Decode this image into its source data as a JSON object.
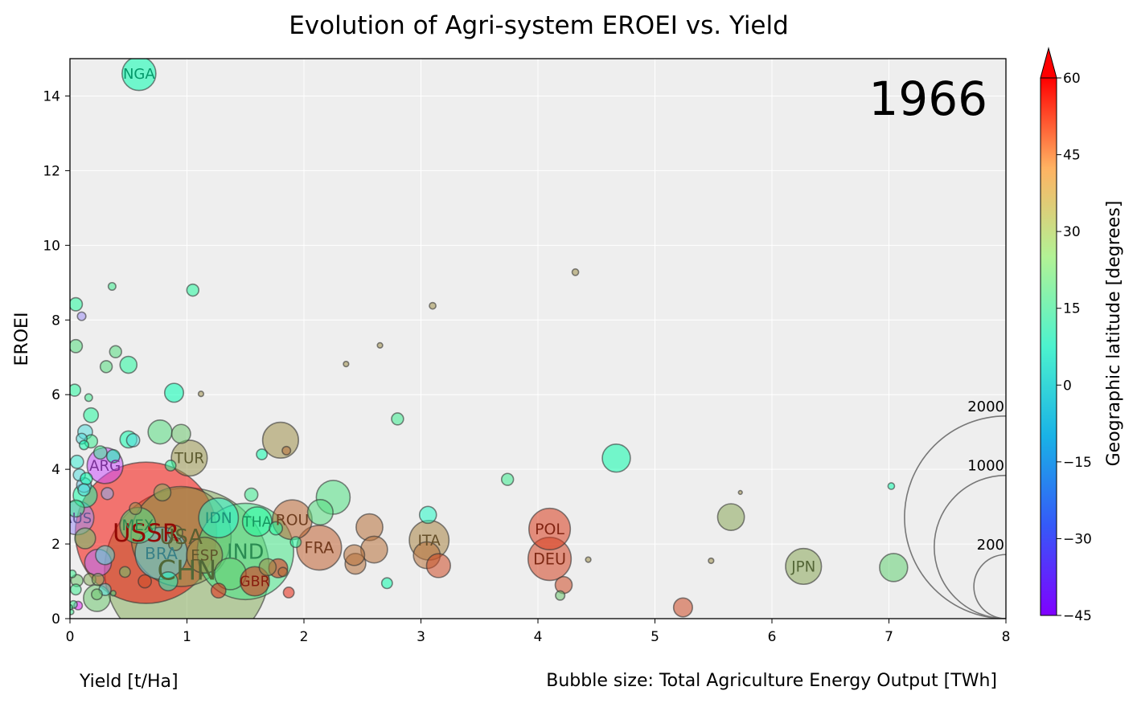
{
  "chart_data": {
    "type": "scatter",
    "title": "Evolution of Agri-system EROEI vs. Yield",
    "year": "1966",
    "xlabel": "Yield [t/Ha]",
    "ylabel": "EROEI",
    "size_caption": "Bubble size: Total Agriculture Energy Output [TWh]",
    "xlim": [
      0,
      8
    ],
    "ylim": [
      0,
      15
    ],
    "x_ticks": [
      0,
      1,
      2,
      3,
      4,
      5,
      6,
      7,
      8
    ],
    "y_ticks": [
      0,
      2,
      4,
      6,
      8,
      10,
      12,
      14
    ],
    "grid": true,
    "colorbar": {
      "label": "Geographic latitude [degrees]",
      "min": -45,
      "max": 60,
      "ticks": [
        60,
        45,
        30,
        15,
        0,
        -15,
        -30,
        -45
      ],
      "extend": "max"
    },
    "size_legend": [
      {
        "label": "2000",
        "value": 2000
      },
      {
        "label": "1000",
        "value": 1000
      },
      {
        "label": "200",
        "value": 200
      }
    ],
    "points": [
      {
        "label": "CHN",
        "x": 1.0,
        "y": 1.3,
        "size": 1900,
        "lat": 35
      },
      {
        "label": "USSR",
        "x": 0.65,
        "y": 2.3,
        "size": 1400,
        "lat": 58
      },
      {
        "label": "IND",
        "x": 1.5,
        "y": 1.8,
        "size": 650,
        "lat": 22
      },
      {
        "label": "USA",
        "x": 0.95,
        "y": 2.2,
        "size": 700,
        "lat": 38
      },
      {
        "label": "BRA",
        "x": 0.78,
        "y": 1.75,
        "size": 190,
        "lat": -12
      },
      {
        "label": "IDN",
        "x": 1.27,
        "y": 2.7,
        "size": 110,
        "lat": -2
      },
      {
        "label": "THA",
        "x": 1.6,
        "y": 2.6,
        "size": 60,
        "lat": 15
      },
      {
        "label": "ROU",
        "x": 1.9,
        "y": 2.65,
        "size": 110,
        "lat": 46
      },
      {
        "label": "FRA",
        "x": 2.13,
        "y": 1.9,
        "size": 140,
        "lat": 47
      },
      {
        "label": "ITA",
        "x": 3.07,
        "y": 2.1,
        "size": 110,
        "lat": 42
      },
      {
        "label": "POL",
        "x": 4.1,
        "y": 2.4,
        "size": 120,
        "lat": 52
      },
      {
        "label": "DEU",
        "x": 4.1,
        "y": 1.6,
        "size": 130,
        "lat": 51
      },
      {
        "label": "JPN",
        "x": 6.27,
        "y": 1.4,
        "size": 90,
        "lat": 36
      },
      {
        "label": "TUR",
        "x": 1.02,
        "y": 4.3,
        "size": 90,
        "lat": 39
      },
      {
        "label": "ARG",
        "x": 0.3,
        "y": 4.1,
        "size": 90,
        "lat": -34
      },
      {
        "label": "AUS",
        "x": 0.06,
        "y": 2.7,
        "size": 80,
        "lat": -25
      },
      {
        "label": "MEX",
        "x": 0.58,
        "y": 2.5,
        "size": 90,
        "lat": 23
      },
      {
        "label": "ESP",
        "x": 1.15,
        "y": 1.7,
        "size": 90,
        "lat": 40
      },
      {
        "label": "GBR",
        "x": 1.58,
        "y": 1.0,
        "size": 60,
        "lat": 54
      },
      {
        "label": "NGA",
        "x": 0.59,
        "y": 14.6,
        "size": 80,
        "lat": 9
      },
      {
        "label": "",
        "x": 1.8,
        "y": 4.78,
        "size": 90,
        "lat": 40
      },
      {
        "label": "",
        "x": 4.67,
        "y": 4.3,
        "size": 55,
        "lat": 10
      },
      {
        "label": "",
        "x": 5.65,
        "y": 2.72,
        "size": 50,
        "lat": 36
      },
      {
        "label": "",
        "x": 7.04,
        "y": 1.37,
        "size": 55,
        "lat": 28
      },
      {
        "label": "",
        "x": 2.25,
        "y": 3.25,
        "size": 80,
        "lat": 24
      },
      {
        "label": "",
        "x": 2.56,
        "y": 2.45,
        "size": 50,
        "lat": 45
      },
      {
        "label": "",
        "x": 2.6,
        "y": 1.85,
        "size": 50,
        "lat": 45
      },
      {
        "label": "",
        "x": 3.15,
        "y": 1.42,
        "size": 40,
        "lat": 50
      },
      {
        "label": "",
        "x": 3.05,
        "y": 1.7,
        "size": 50,
        "lat": 45
      },
      {
        "label": "",
        "x": 2.14,
        "y": 2.85,
        "size": 45,
        "lat": 25
      },
      {
        "label": "",
        "x": 1.37,
        "y": 1.2,
        "size": 70,
        "lat": 28
      },
      {
        "label": "",
        "x": 0.77,
        "y": 5.0,
        "size": 40,
        "lat": 25
      },
      {
        "label": "",
        "x": 0.89,
        "y": 6.05,
        "size": 25,
        "lat": 8
      },
      {
        "label": "",
        "x": 0.95,
        "y": 4.95,
        "size": 25,
        "lat": 30
      },
      {
        "label": "",
        "x": 0.5,
        "y": 6.8,
        "size": 20,
        "lat": 15
      },
      {
        "label": "",
        "x": 0.13,
        "y": 3.3,
        "size": 40,
        "lat": 12
      },
      {
        "label": "",
        "x": 0.24,
        "y": 1.5,
        "size": 50,
        "lat": -30
      },
      {
        "label": "",
        "x": 0.3,
        "y": 1.7,
        "size": 25,
        "lat": -10
      },
      {
        "label": "",
        "x": 0.23,
        "y": 0.55,
        "size": 50,
        "lat": 30
      },
      {
        "label": "",
        "x": 0.13,
        "y": 2.15,
        "size": 30,
        "lat": 30
      },
      {
        "label": "",
        "x": 0.84,
        "y": 1.0,
        "size": 25,
        "lat": 0
      },
      {
        "label": "",
        "x": 0.79,
        "y": 3.38,
        "size": 20,
        "lat": 35
      },
      {
        "label": "",
        "x": 2.44,
        "y": 1.47,
        "size": 30,
        "lat": 45
      },
      {
        "label": "",
        "x": 2.43,
        "y": 1.7,
        "size": 30,
        "lat": 45
      },
      {
        "label": "",
        "x": 4.22,
        "y": 0.9,
        "size": 20,
        "lat": 50
      },
      {
        "label": "",
        "x": 5.24,
        "y": 0.3,
        "size": 25,
        "lat": 50
      },
      {
        "label": "",
        "x": 1.78,
        "y": 1.35,
        "size": 25,
        "lat": 55
      },
      {
        "label": "",
        "x": 1.69,
        "y": 1.38,
        "size": 20,
        "lat": 40
      },
      {
        "label": "",
        "x": 1.27,
        "y": 0.75,
        "size": 15,
        "lat": 55
      },
      {
        "label": "",
        "x": 3.06,
        "y": 2.78,
        "size": 20,
        "lat": 0
      },
      {
        "label": "",
        "x": 0.13,
        "y": 5.0,
        "size": 15,
        "lat": -10
      },
      {
        "label": "",
        "x": 0.18,
        "y": 5.45,
        "size": 15,
        "lat": 15
      },
      {
        "label": "",
        "x": 0.5,
        "y": 4.8,
        "size": 20,
        "lat": 10
      },
      {
        "label": "",
        "x": 0.54,
        "y": 4.78,
        "size": 12,
        "lat": -10
      },
      {
        "label": "",
        "x": 0.06,
        "y": 4.2,
        "size": 12,
        "lat": -5
      },
      {
        "label": "",
        "x": 0.26,
        "y": 4.45,
        "size": 12,
        "lat": 20
      },
      {
        "label": "",
        "x": 0.37,
        "y": 4.35,
        "size": 12,
        "lat": 10
      },
      {
        "label": "",
        "x": 0.08,
        "y": 3.85,
        "size": 10,
        "lat": -10
      },
      {
        "label": "",
        "x": 0.12,
        "y": 3.58,
        "size": 15,
        "lat": -15
      },
      {
        "label": "",
        "x": 0.14,
        "y": 3.75,
        "size": 10,
        "lat": 10
      },
      {
        "label": "",
        "x": 0.05,
        "y": 2.95,
        "size": 20,
        "lat": 20
      },
      {
        "label": "",
        "x": 0.32,
        "y": 3.35,
        "size": 10,
        "lat": -20
      },
      {
        "label": "",
        "x": 0.12,
        "y": 3.45,
        "size": 10,
        "lat": -10
      },
      {
        "label": "",
        "x": 0.05,
        "y": 8.42,
        "size": 12,
        "lat": 15
      },
      {
        "label": "",
        "x": 0.05,
        "y": 7.3,
        "size": 12,
        "lat": 25
      },
      {
        "label": "",
        "x": 0.04,
        "y": 6.12,
        "size": 10,
        "lat": 15
      },
      {
        "label": "",
        "x": 0.31,
        "y": 6.75,
        "size": 10,
        "lat": 25
      },
      {
        "label": "",
        "x": 0.39,
        "y": 7.15,
        "size": 10,
        "lat": 25
      },
      {
        "label": "",
        "x": 1.05,
        "y": 8.8,
        "size": 10,
        "lat": 15
      },
      {
        "label": "",
        "x": 0.1,
        "y": 8.1,
        "size": 5,
        "lat": -25
      },
      {
        "label": "",
        "x": 0.36,
        "y": 8.9,
        "size": 4,
        "lat": 20
      },
      {
        "label": "",
        "x": 0.16,
        "y": 5.92,
        "size": 4,
        "lat": 20
      },
      {
        "label": "",
        "x": 0.1,
        "y": 4.82,
        "size": 8,
        "lat": -10
      },
      {
        "label": "",
        "x": 0.12,
        "y": 4.65,
        "size": 6,
        "lat": 10
      },
      {
        "label": "",
        "x": 0.18,
        "y": 4.75,
        "size": 12,
        "lat": 20
      },
      {
        "label": "",
        "x": 0.86,
        "y": 4.1,
        "size": 8,
        "lat": 15
      },
      {
        "label": "",
        "x": 1.64,
        "y": 4.4,
        "size": 8,
        "lat": 10
      },
      {
        "label": "",
        "x": 1.55,
        "y": 3.32,
        "size": 12,
        "lat": 20
      },
      {
        "label": "",
        "x": 1.76,
        "y": 2.42,
        "size": 12,
        "lat": 15
      },
      {
        "label": "",
        "x": 1.85,
        "y": 4.5,
        "size": 5,
        "lat": 45
      },
      {
        "label": "",
        "x": 2.8,
        "y": 5.35,
        "size": 10,
        "lat": 20
      },
      {
        "label": "",
        "x": 3.74,
        "y": 3.73,
        "size": 10,
        "lat": 20
      },
      {
        "label": "",
        "x": 2.71,
        "y": 0.95,
        "size": 8,
        "lat": 10
      },
      {
        "label": "",
        "x": 1.93,
        "y": 2.05,
        "size": 8,
        "lat": 15
      },
      {
        "label": "",
        "x": 1.87,
        "y": 0.7,
        "size": 8,
        "lat": 55
      },
      {
        "label": "",
        "x": 1.82,
        "y": 1.25,
        "size": 6,
        "lat": 45
      },
      {
        "label": "",
        "x": 4.19,
        "y": 0.62,
        "size": 6,
        "lat": 30
      },
      {
        "label": "",
        "x": 4.32,
        "y": 9.28,
        "size": 3,
        "lat": 40
      },
      {
        "label": "",
        "x": 3.1,
        "y": 8.38,
        "size": 3,
        "lat": 40
      },
      {
        "label": "",
        "x": 2.65,
        "y": 7.32,
        "size": 2,
        "lat": 40
      },
      {
        "label": "",
        "x": 2.36,
        "y": 6.82,
        "size": 2,
        "lat": 40
      },
      {
        "label": "",
        "x": 1.12,
        "y": 6.02,
        "size": 2,
        "lat": 40
      },
      {
        "label": "",
        "x": 4.43,
        "y": 1.58,
        "size": 2,
        "lat": 40
      },
      {
        "label": "",
        "x": 5.48,
        "y": 1.55,
        "size": 2,
        "lat": 40
      },
      {
        "label": "",
        "x": 5.73,
        "y": 3.38,
        "size": 1,
        "lat": 40
      },
      {
        "label": "",
        "x": 7.02,
        "y": 3.55,
        "size": 3,
        "lat": 10
      },
      {
        "label": "",
        "x": 0.64,
        "y": 1.0,
        "size": 12,
        "lat": 50
      },
      {
        "label": "",
        "x": 0.47,
        "y": 1.25,
        "size": 8,
        "lat": 30
      },
      {
        "label": "",
        "x": 0.06,
        "y": 1.02,
        "size": 10,
        "lat": 30
      },
      {
        "label": "",
        "x": 0.17,
        "y": 1.05,
        "size": 10,
        "lat": 35
      },
      {
        "label": "",
        "x": 0.24,
        "y": 1.05,
        "size": 10,
        "lat": 35
      },
      {
        "label": "",
        "x": 0.3,
        "y": 0.78,
        "size": 10,
        "lat": -10
      },
      {
        "label": "",
        "x": 0.05,
        "y": 0.78,
        "size": 8,
        "lat": 20
      },
      {
        "label": "",
        "x": 0.07,
        "y": 0.35,
        "size": 5,
        "lat": -40
      },
      {
        "label": "",
        "x": 0.03,
        "y": 0.38,
        "size": 4,
        "lat": 20
      },
      {
        "label": "",
        "x": 0.0,
        "y": 0.3,
        "size": 2,
        "lat": 20
      },
      {
        "label": "",
        "x": 0.01,
        "y": 0.18,
        "size": 2,
        "lat": 20
      },
      {
        "label": "",
        "x": 0.02,
        "y": 1.2,
        "size": 4,
        "lat": 20
      },
      {
        "label": "",
        "x": 0.37,
        "y": 0.68,
        "size": 2,
        "lat": 20
      },
      {
        "label": "",
        "x": 0.23,
        "y": 0.65,
        "size": 8,
        "lat": 30
      },
      {
        "label": "",
        "x": 0.56,
        "y": 2.95,
        "size": 10,
        "lat": 40
      },
      {
        "label": "",
        "x": 0.9,
        "y": 2.3,
        "size": 15,
        "lat": 35
      },
      {
        "label": "",
        "x": 0.9,
        "y": 2.0,
        "size": 12,
        "lat": 38
      }
    ]
  }
}
